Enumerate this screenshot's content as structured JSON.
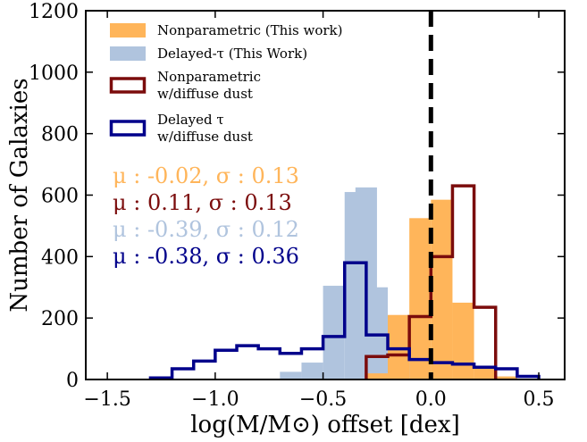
{
  "chart_data": {
    "type": "histogram",
    "xlabel": "log(M/M⊙) offset [dex]",
    "ylabel": "Number of Galaxies",
    "xlim": [
      -1.6,
      0.62
    ],
    "ylim": [
      0,
      1200
    ],
    "xticks": [
      -1.5,
      -1.0,
      -0.5,
      0.0,
      0.5
    ],
    "xtick_labels": [
      "−1.5",
      "−1.0",
      "−0.5",
      "0.0",
      "0.5"
    ],
    "yticks": [
      0,
      200,
      400,
      600,
      800,
      1000,
      1200
    ],
    "ytick_labels": [
      "0",
      "200",
      "400",
      "600",
      "800",
      "1000",
      "1200"
    ],
    "reference_line": {
      "x": 0.0,
      "style": "dashed",
      "color": "#000000"
    },
    "series": [
      {
        "name": "Delayed-τ (This Work)",
        "style": "filled",
        "color": "#b0c4de",
        "bin_width": 0.1,
        "bins": [
          {
            "x0": -0.7,
            "y": 25
          },
          {
            "x0": -0.6,
            "y": 55
          },
          {
            "x0": -0.5,
            "y": 305
          },
          {
            "x0": -0.4,
            "y": 610
          },
          {
            "x0": -0.35,
            "y": 625
          },
          {
            "x0": -0.3,
            "y": 300
          },
          {
            "x0": -0.2,
            "y": 170
          },
          {
            "x0": -0.1,
            "y": 60
          }
        ]
      },
      {
        "name": "Nonparametric (This work)",
        "style": "filled",
        "color": "#ffb55a",
        "bin_width": 0.1,
        "bins": [
          {
            "x0": -0.3,
            "y": 20
          },
          {
            "x0": -0.2,
            "y": 210
          },
          {
            "x0": -0.1,
            "y": 525
          },
          {
            "x0": 0.0,
            "y": 585
          },
          {
            "x0": 0.1,
            "y": 250
          },
          {
            "x0": 0.2,
            "y": 45
          },
          {
            "x0": 0.3,
            "y": 10
          }
        ]
      },
      {
        "name": "Nonparametric\nw/diffuse dust",
        "style": "step",
        "color": "#7b0c0c",
        "edges": [
          -0.3,
          -0.2,
          -0.1,
          0.0,
          0.1,
          0.2,
          0.3
        ],
        "values": [
          75,
          80,
          205,
          400,
          630,
          235
        ]
      },
      {
        "name": "Delayed τ\nw/diffuse dust",
        "style": "step",
        "color": "#00008b",
        "edges": [
          -1.3,
          -1.2,
          -1.1,
          -1.0,
          -0.9,
          -0.8,
          -0.7,
          -0.6,
          -0.5,
          -0.4,
          -0.3,
          -0.2,
          -0.1,
          0.0,
          0.1,
          0.2,
          0.3,
          0.4,
          0.5
        ],
        "values": [
          5,
          35,
          60,
          95,
          110,
          100,
          85,
          100,
          140,
          380,
          145,
          100,
          65,
          55,
          50,
          40,
          35,
          10
        ]
      }
    ],
    "legend": {
      "placement": "top-left",
      "entries": [
        {
          "label": "Nonparametric (This work)",
          "lines": [
            "Nonparametric (This work)"
          ],
          "color": "#ffb55a",
          "style": "filled"
        },
        {
          "label": "Delayed-τ (This Work)",
          "lines": [
            "Delayed-τ (This Work)"
          ],
          "color": "#b0c4de",
          "style": "filled"
        },
        {
          "label": "Nonparametric w/diffuse dust",
          "lines": [
            "Nonparametric",
            "w/diffuse dust"
          ],
          "color": "#7b0c0c",
          "style": "step"
        },
        {
          "label": "Delayed τ w/diffuse dust",
          "lines": [
            "Delayed τ",
            "w/diffuse dust"
          ],
          "color": "#00008b",
          "style": "step"
        }
      ]
    },
    "annotations": [
      {
        "text": "μ : -0.02, σ : 0.13",
        "color": "#ffb55a"
      },
      {
        "text": "μ : 0.11, σ : 0.13",
        "color": "#7b0c0c"
      },
      {
        "text": "μ : -0.39, σ : 0.12",
        "color": "#b0c4de"
      },
      {
        "text": "μ : -0.38, σ : 0.36",
        "color": "#00008b"
      }
    ]
  }
}
